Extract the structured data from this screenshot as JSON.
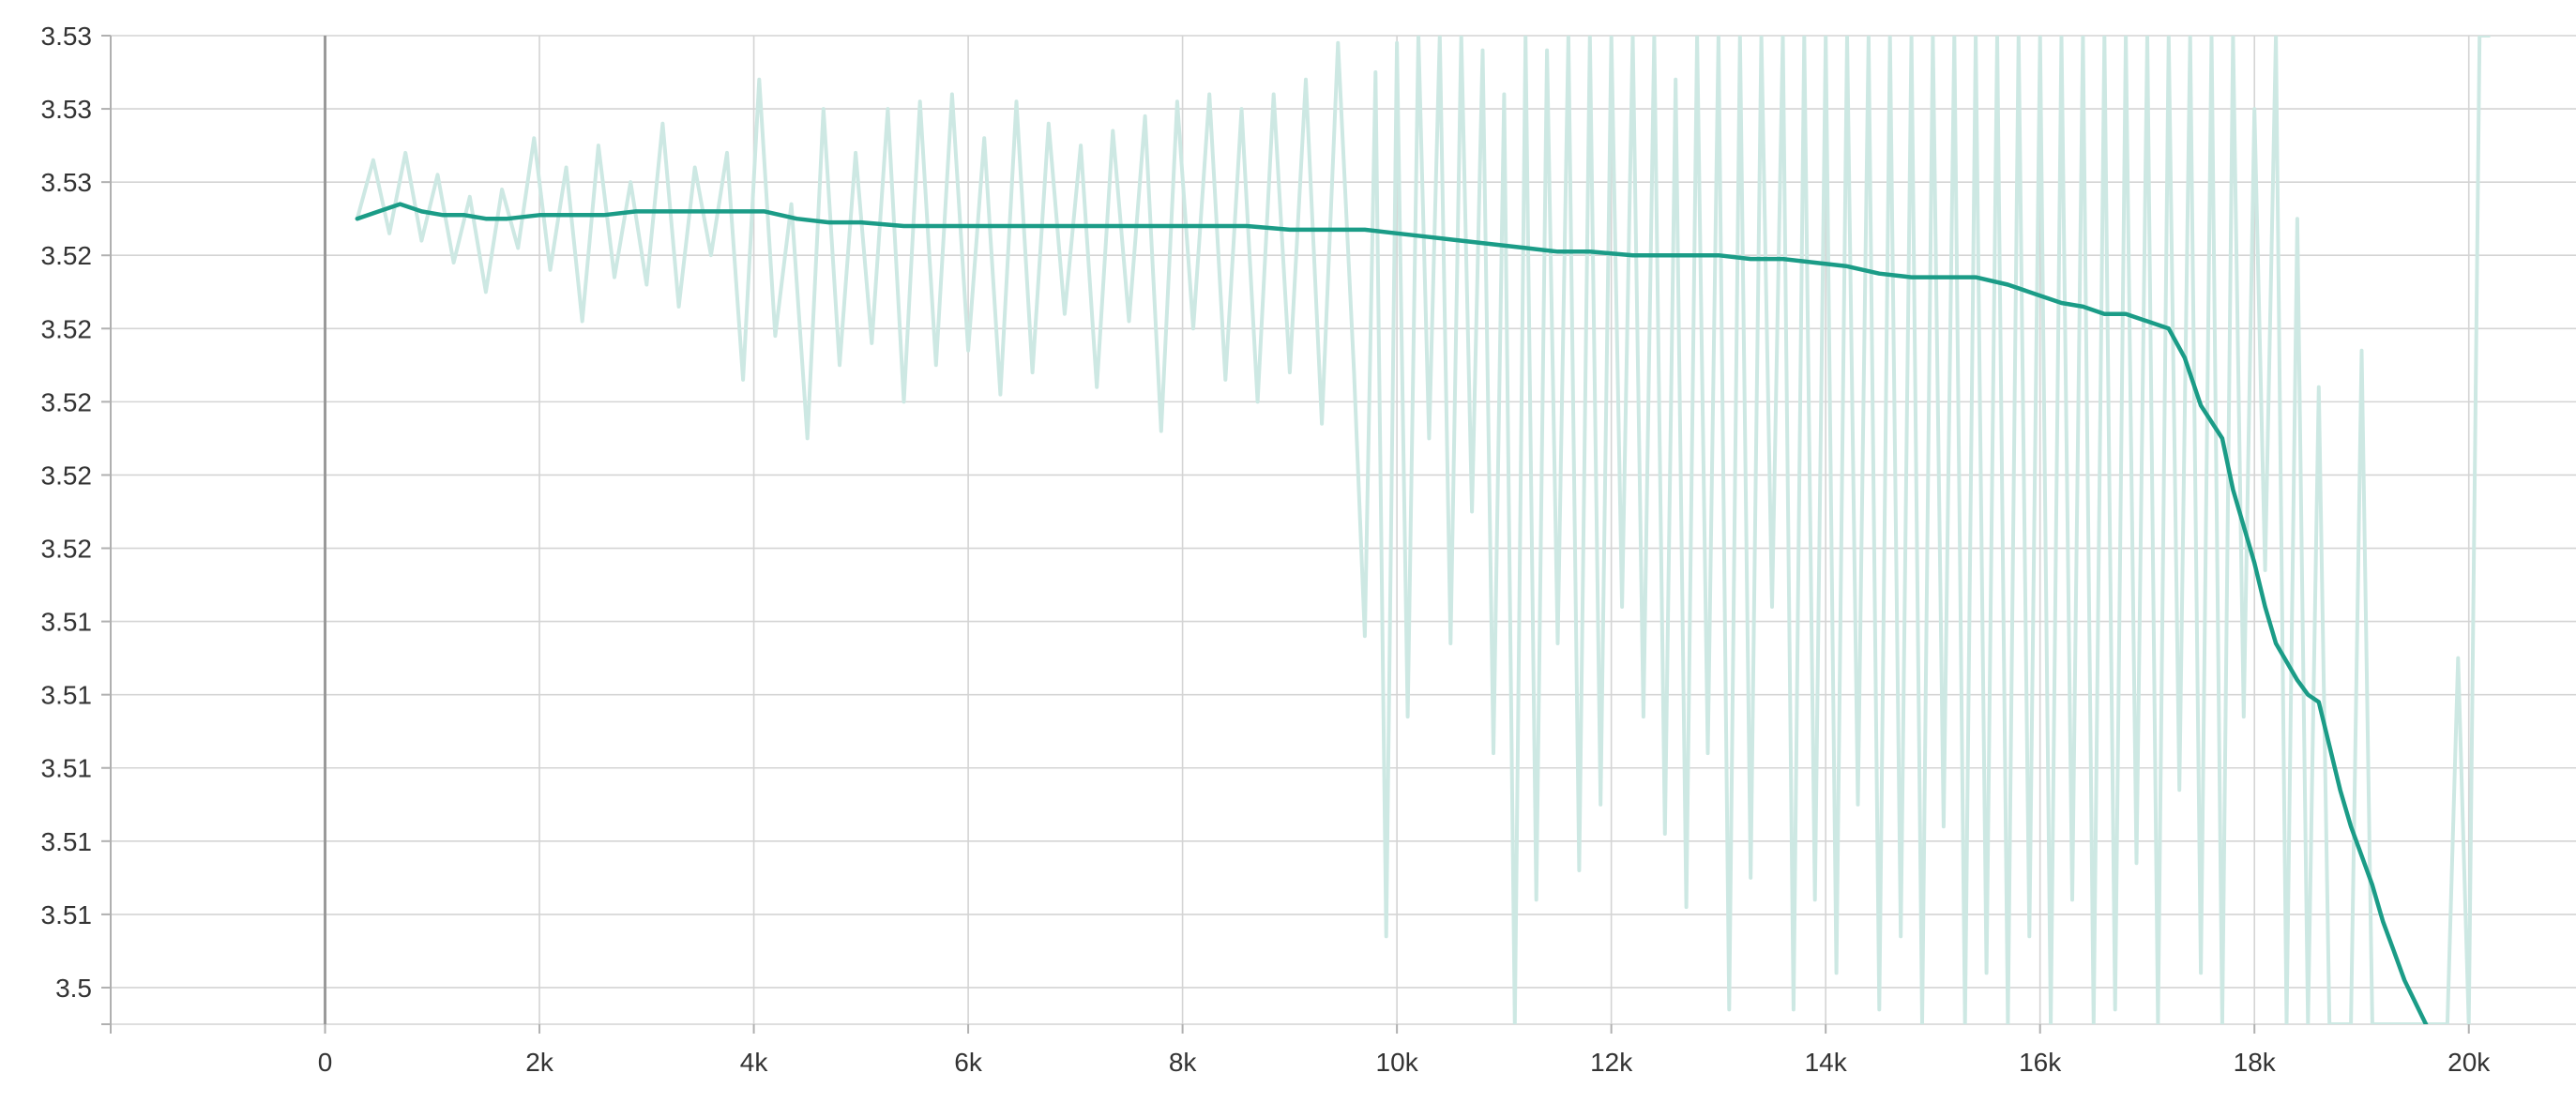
{
  "chart_data": {
    "type": "line",
    "title": "",
    "xlabel": "",
    "ylabel": "",
    "grid": true,
    "xlim": [
      -2000,
      21000
    ],
    "ylim": [
      3.5036,
      3.5306
    ],
    "x_ticks": [
      {
        "value": 0,
        "label": "0"
      },
      {
        "value": 2000,
        "label": "2k"
      },
      {
        "value": 4000,
        "label": "4k"
      },
      {
        "value": 6000,
        "label": "6k"
      },
      {
        "value": 8000,
        "label": "8k"
      },
      {
        "value": 10000,
        "label": "10k"
      },
      {
        "value": 12000,
        "label": "12k"
      },
      {
        "value": 14000,
        "label": "14k"
      },
      {
        "value": 16000,
        "label": "16k"
      },
      {
        "value": 18000,
        "label": "18k"
      },
      {
        "value": 20000,
        "label": "20k"
      }
    ],
    "y_ticks": [
      {
        "value": 3.5036,
        "label": ""
      },
      {
        "value": 3.5046,
        "label": "3.5"
      },
      {
        "value": 3.5066,
        "label": "3.51"
      },
      {
        "value": 3.5086,
        "label": "3.51"
      },
      {
        "value": 3.5106,
        "label": "3.51"
      },
      {
        "value": 3.5126,
        "label": "3.51"
      },
      {
        "value": 3.5146,
        "label": "3.51"
      },
      {
        "value": 3.5166,
        "label": "3.52"
      },
      {
        "value": 3.5186,
        "label": "3.52"
      },
      {
        "value": 3.5206,
        "label": "3.52"
      },
      {
        "value": 3.5226,
        "label": "3.52"
      },
      {
        "value": 3.5246,
        "label": "3.52"
      },
      {
        "value": 3.5266,
        "label": "3.53"
      },
      {
        "value": 3.5286,
        "label": "3.53"
      },
      {
        "value": 3.5306,
        "label": "3.53"
      }
    ],
    "series": [
      {
        "role": "raw",
        "color": "#cde8e3",
        "x": [
          300,
          450,
          600,
          750,
          900,
          1050,
          1200,
          1350,
          1500,
          1650,
          1800,
          1950,
          2100,
          2250,
          2400,
          2550,
          2700,
          2850,
          3000,
          3150,
          3300,
          3450,
          3600,
          3750,
          3900,
          4050,
          4200,
          4350,
          4500,
          4650,
          4800,
          4950,
          5100,
          5250,
          5400,
          5550,
          5700,
          5850,
          6000,
          6150,
          6300,
          6450,
          6600,
          6750,
          6900,
          7050,
          7200,
          7350,
          7500,
          7650,
          7800,
          7950,
          8100,
          8250,
          8400,
          8550,
          8700,
          8850,
          9000,
          9150,
          9300,
          9450,
          9600,
          9700,
          9800,
          9900,
          10000,
          10100,
          10200,
          10300,
          10400,
          10500,
          10600,
          10700,
          10800,
          10900,
          11000,
          11100,
          11200,
          11300,
          11400,
          11500,
          11600,
          11700,
          11800,
          11900,
          12000,
          12100,
          12200,
          12300,
          12400,
          12500,
          12600,
          12700,
          12800,
          12900,
          13000,
          13100,
          13200,
          13300,
          13400,
          13500,
          13600,
          13700,
          13800,
          13900,
          14000,
          14100,
          14200,
          14300,
          14400,
          14500,
          14600,
          14700,
          14800,
          14900,
          15000,
          15100,
          15200,
          15300,
          15400,
          15500,
          15600,
          15700,
          15800,
          15900,
          16000,
          16100,
          16200,
          16300,
          16400,
          16500,
          16600,
          16700,
          16800,
          16900,
          17000,
          17100,
          17200,
          17300,
          17400,
          17500,
          17600,
          17700,
          17800,
          17900,
          18000,
          18100,
          18200,
          18300,
          18400,
          18500,
          18600,
          18700,
          18800,
          18900,
          19000,
          19100,
          19200,
          19300,
          19400,
          19500,
          19600,
          19700,
          19800,
          19900,
          20000,
          20100,
          20200
        ],
        "y": [
          3.5256,
          3.5272,
          3.5252,
          3.5274,
          3.525,
          3.5268,
          3.5244,
          3.5262,
          3.5236,
          3.5264,
          3.5248,
          3.5278,
          3.5242,
          3.527,
          3.5228,
          3.5276,
          3.524,
          3.5266,
          3.5238,
          3.5282,
          3.5232,
          3.527,
          3.5246,
          3.5274,
          3.5212,
          3.5294,
          3.5224,
          3.526,
          3.5196,
          3.5286,
          3.5216,
          3.5274,
          3.5222,
          3.5286,
          3.5206,
          3.5288,
          3.5216,
          3.529,
          3.522,
          3.5278,
          3.5208,
          3.5288,
          3.5214,
          3.5282,
          3.523,
          3.5276,
          3.521,
          3.528,
          3.5228,
          3.5284,
          3.5198,
          3.5288,
          3.5226,
          3.529,
          3.5212,
          3.5286,
          3.5206,
          3.529,
          3.5214,
          3.5294,
          3.52,
          3.5304,
          3.5214,
          3.5142,
          3.5296,
          3.506,
          3.5304,
          3.512,
          3.5306,
          3.5196,
          3.5306,
          3.514,
          3.5306,
          3.5176,
          3.5302,
          3.511,
          3.529,
          3.5036,
          3.5306,
          3.507,
          3.5302,
          3.514,
          3.5306,
          3.5078,
          3.5306,
          3.5096,
          3.5306,
          3.515,
          3.5306,
          3.512,
          3.5306,
          3.5088,
          3.5294,
          3.5068,
          3.5306,
          3.511,
          3.5306,
          3.504,
          3.5306,
          3.5076,
          3.5306,
          3.515,
          3.5306,
          3.504,
          3.5306,
          3.507,
          3.5306,
          3.505,
          3.5306,
          3.5096,
          3.5306,
          3.504,
          3.5306,
          3.506,
          3.5306,
          3.5036,
          3.5306,
          3.509,
          3.5306,
          3.5036,
          3.5306,
          3.505,
          3.5306,
          3.5036,
          3.5306,
          3.506,
          3.5306,
          3.5036,
          3.5306,
          3.507,
          3.5306,
          3.5036,
          3.5306,
          3.504,
          3.5306,
          3.508,
          3.5306,
          3.5036,
          3.5306,
          3.51,
          3.5306,
          3.505,
          3.5306,
          3.5036,
          3.5306,
          3.512,
          3.5286,
          3.516,
          3.5306,
          3.5036,
          3.5256,
          3.5036,
          3.521,
          3.5036,
          3.5036,
          3.5036,
          3.522,
          3.5036,
          3.5036,
          3.5036,
          3.5036,
          3.5036,
          3.5036,
          3.5036,
          3.5036,
          3.5136,
          3.5036,
          3.5306,
          3.5306
        ]
      },
      {
        "role": "smoothed",
        "color": "#1b9c87",
        "x": [
          300,
          500,
          700,
          900,
          1100,
          1300,
          1500,
          1700,
          2000,
          2300,
          2600,
          2900,
          3200,
          3500,
          3800,
          4100,
          4400,
          4700,
          5000,
          5400,
          5800,
          6200,
          6600,
          7000,
          7400,
          7800,
          8200,
          8600,
          9000,
          9400,
          9700,
          10000,
          10300,
          10600,
          10900,
          11200,
          11500,
          11800,
          12200,
          12600,
          13000,
          13300,
          13600,
          13900,
          14200,
          14500,
          14800,
          15100,
          15400,
          15700,
          16000,
          16200,
          16400,
          16600,
          16800,
          17000,
          17200,
          17350,
          17500,
          17700,
          17800,
          17900,
          18000,
          18100,
          18200,
          18300,
          18400,
          18500,
          18600,
          18700,
          18800,
          18900,
          19000,
          19100,
          19200,
          19300,
          19400,
          19500,
          19600,
          19700
        ],
        "y": [
          3.5256,
          3.5258,
          3.526,
          3.5258,
          3.5257,
          3.5257,
          3.5256,
          3.5256,
          3.5257,
          3.5257,
          3.5257,
          3.5258,
          3.5258,
          3.5258,
          3.5258,
          3.5258,
          3.5256,
          3.5255,
          3.5255,
          3.5254,
          3.5254,
          3.5254,
          3.5254,
          3.5254,
          3.5254,
          3.5254,
          3.5254,
          3.5254,
          3.5253,
          3.5253,
          3.5253,
          3.5252,
          3.5251,
          3.525,
          3.5249,
          3.5248,
          3.5247,
          3.5247,
          3.5246,
          3.5246,
          3.5246,
          3.5245,
          3.5245,
          3.5244,
          3.5243,
          3.5241,
          3.524,
          3.524,
          3.524,
          3.5238,
          3.5235,
          3.5233,
          3.5232,
          3.523,
          3.523,
          3.5228,
          3.5226,
          3.5218,
          3.5205,
          3.5196,
          3.5182,
          3.5172,
          3.5162,
          3.515,
          3.514,
          3.5135,
          3.513,
          3.5126,
          3.5124,
          3.5112,
          3.51,
          3.509,
          3.5082,
          3.5074,
          3.5064,
          3.5056,
          3.5048,
          3.5042,
          3.5036,
          3.503
        ]
      }
    ]
  }
}
